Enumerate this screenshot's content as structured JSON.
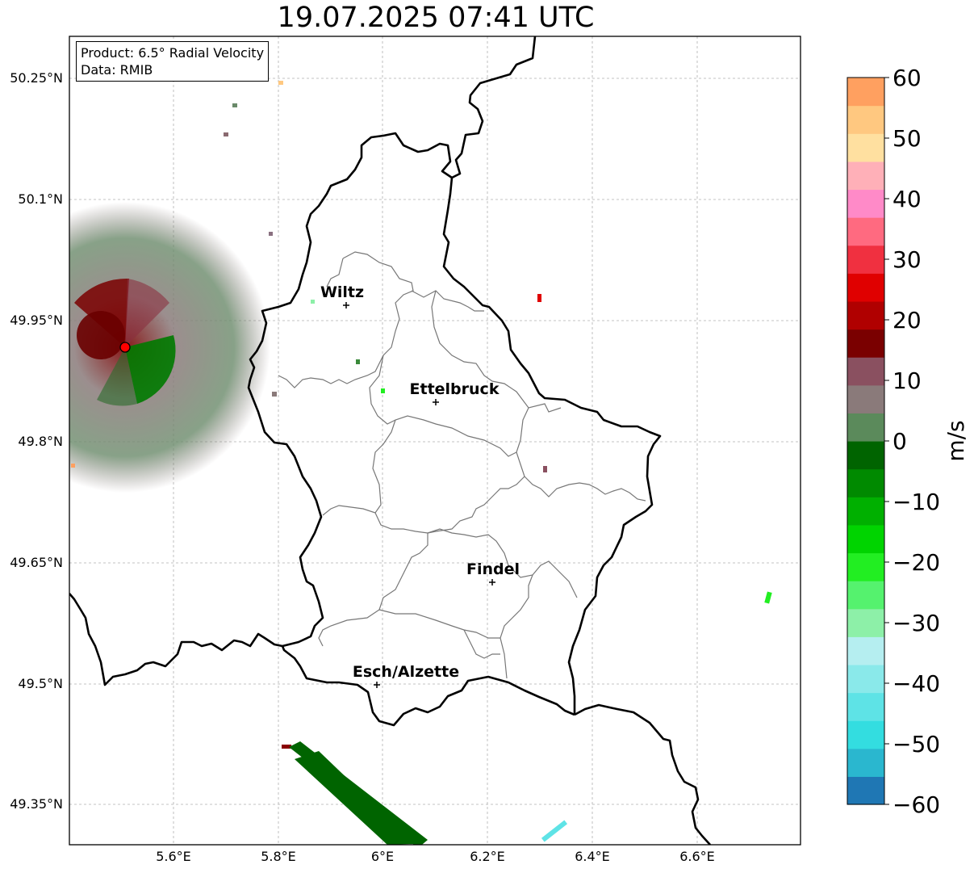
{
  "title": "19.07.2025 07:41 UTC",
  "info": {
    "product": "Product: 6.5° Radial Velocity",
    "source": "Data: RMIB"
  },
  "axes": {
    "lat_ticks": [
      "50.25°N",
      "50.1°N",
      "49.95°N",
      "49.8°N",
      "49.65°N",
      "49.5°N",
      "49.35°N"
    ],
    "lon_ticks": [
      "5.6°E",
      "5.8°E",
      "6°E",
      "6.2°E",
      "6.4°E",
      "6.6°E"
    ]
  },
  "colorbar": {
    "label": "m/s",
    "ticks": [
      "60",
      "50",
      "40",
      "30",
      "20",
      "10",
      "0",
      "−10",
      "−20",
      "−30",
      "−40",
      "−50",
      "−60"
    ],
    "range": [
      -60,
      60
    ],
    "colors": [
      "#1f77b4",
      "#2ab7cf",
      "#33dde0",
      "#5ee3e6",
      "#8ae9ea",
      "#b5eef0",
      "#8df0a8",
      "#55f26e",
      "#22ee22",
      "#00d400",
      "#00b000",
      "#008a00",
      "#006400",
      "#5b8a5b",
      "#8a7a7a",
      "#8a5060",
      "#7a0000",
      "#b00000",
      "#e00000",
      "#f03040",
      "#ff6a80",
      "#ff8ac8",
      "#ffb0b8",
      "#ffe0a0",
      "#ffc880",
      "#ffa060"
    ]
  },
  "cities": [
    {
      "name": "Wiltz",
      "lon": 5.93,
      "lat": 49.967
    },
    {
      "name": "Ettelbruck",
      "lon": 6.1,
      "lat": 49.847
    },
    {
      "name": "Findel",
      "lon": 6.21,
      "lat": 49.627
    },
    {
      "name": "Esch/Alzette",
      "lon": 5.99,
      "lat": 49.497
    }
  ],
  "radar_site": {
    "lon": 5.505,
    "lat": 49.914,
    "color": "#ff0000"
  }
}
